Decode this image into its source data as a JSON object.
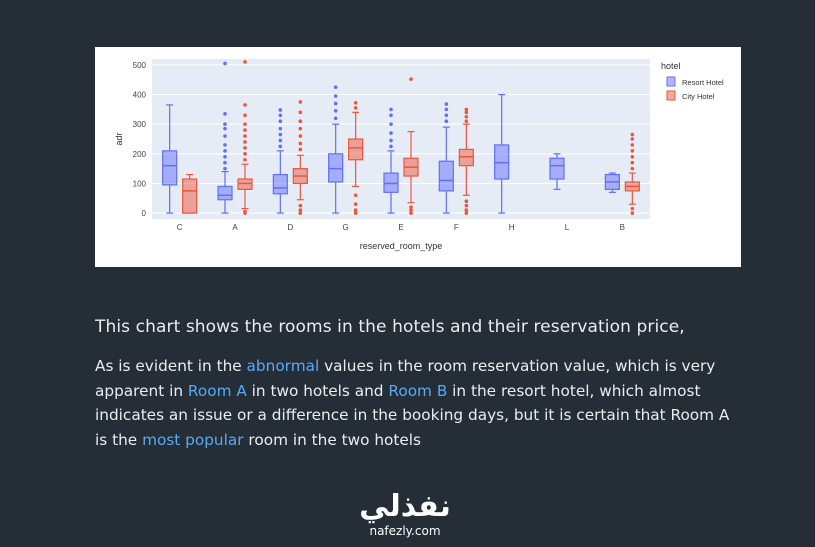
{
  "chart_data": {
    "type": "box",
    "title": "",
    "xlabel": "reserved_room_type",
    "ylabel": "adr",
    "ylim": [
      -20,
      520
    ],
    "yticks": [
      0,
      100,
      200,
      300,
      400,
      500
    ],
    "categories": [
      "C",
      "A",
      "D",
      "G",
      "E",
      "F",
      "H",
      "L",
      "B"
    ],
    "legend_title": "hotel",
    "legend_position": "top-right",
    "series": [
      {
        "name": "Resort Hotel",
        "color": "#636efa",
        "boxes": [
          {
            "cat": "C",
            "min": 0,
            "q1": 95,
            "median": 160,
            "q3": 210,
            "max": 365,
            "outliers": []
          },
          {
            "cat": "A",
            "min": 0,
            "q1": 45,
            "median": 60,
            "q3": 90,
            "max": 140,
            "outliers": [
              150,
              170,
              190,
              210,
              230,
              260,
              285,
              300,
              335,
              505
            ]
          },
          {
            "cat": "D",
            "min": 0,
            "q1": 65,
            "median": 85,
            "q3": 130,
            "max": 210,
            "outliers": [
              225,
              245,
              265,
              285,
              310,
              330,
              348
            ]
          },
          {
            "cat": "G",
            "min": 0,
            "q1": 105,
            "median": 150,
            "q3": 200,
            "max": 300,
            "outliers": [
              320,
              345,
              370,
              395,
              425
            ]
          },
          {
            "cat": "E",
            "min": 0,
            "q1": 70,
            "median": 100,
            "q3": 135,
            "max": 210,
            "outliers": [
              225,
              245,
              270,
              300,
              330,
              350
            ]
          },
          {
            "cat": "F",
            "min": 0,
            "q1": 75,
            "median": 110,
            "q3": 175,
            "max": 290,
            "outliers": [
              310,
              330,
              350,
              368
            ]
          },
          {
            "cat": "H",
            "min": 0,
            "q1": 115,
            "median": 170,
            "q3": 230,
            "max": 400,
            "outliers": []
          },
          {
            "cat": "L",
            "min": 80,
            "q1": 115,
            "median": 160,
            "q3": 185,
            "max": 200,
            "outliers": []
          },
          {
            "cat": "B",
            "min": 70,
            "q1": 80,
            "median": 105,
            "q3": 130,
            "max": 135,
            "outliers": []
          }
        ]
      },
      {
        "name": "City Hotel",
        "color": "#ef553b",
        "boxes": [
          {
            "cat": "C",
            "min": 0,
            "q1": 0,
            "median": 75,
            "q3": 115,
            "max": 130,
            "outliers": []
          },
          {
            "cat": "A",
            "min": 15,
            "q1": 80,
            "median": 100,
            "q3": 115,
            "max": 165,
            "outliers": [
              0,
              5,
              180,
              200,
              220,
              240,
              260,
              280,
              300,
              330,
              365,
              510
            ]
          },
          {
            "cat": "D",
            "min": 45,
            "q1": 100,
            "median": 125,
            "q3": 150,
            "max": 195,
            "outliers": [
              0,
              10,
              25,
              215,
              235,
              260,
              285,
              310,
              340,
              375
            ]
          },
          {
            "cat": "G",
            "min": 90,
            "q1": 180,
            "median": 220,
            "q3": 250,
            "max": 340,
            "outliers": [
              0,
              10,
              30,
              60,
              355,
              372
            ]
          },
          {
            "cat": "E",
            "min": 35,
            "q1": 125,
            "median": 155,
            "q3": 185,
            "max": 275,
            "outliers": [
              0,
              10,
              20,
              452
            ]
          },
          {
            "cat": "F",
            "min": 60,
            "q1": 160,
            "median": 190,
            "q3": 215,
            "max": 300,
            "outliers": [
              0,
              10,
              25,
              40,
              310,
              325,
              340,
              350
            ]
          },
          {
            "cat": "B",
            "min": 30,
            "q1": 75,
            "median": 90,
            "q3": 105,
            "max": 135,
            "outliers": [
              0,
              15,
              150,
              170,
              190,
              210,
              230,
              250,
              265
            ]
          }
        ]
      }
    ]
  },
  "headline": "This chart shows the rooms in the hotels and their reservation price,",
  "body": [
    {
      "text": "As is evident in the ",
      "hl": false
    },
    {
      "text": "abnormal",
      "hl": true
    },
    {
      "text": " values in the room reservation value, which is very apparent in ",
      "hl": false
    },
    {
      "text": "Room A",
      "hl": true
    },
    {
      "text": " in two hotels and ",
      "hl": false
    },
    {
      "text": "Room B",
      "hl": true
    },
    {
      "text": " in the resort hotel, which almost indicates an issue or a difference in the booking days, but it is certain that Room A is the ",
      "hl": false
    },
    {
      "text": "most popular",
      "hl": true
    },
    {
      "text": " room in the two hotels",
      "hl": false
    }
  ],
  "logo": {
    "arabic": "نفذلي",
    "latin": "nafezly.com"
  },
  "colors": {
    "page_bg": "#252d37",
    "text": "#e8edf2",
    "highlight": "#5aa9f5",
    "plot_bg": "#e5ecf6"
  }
}
